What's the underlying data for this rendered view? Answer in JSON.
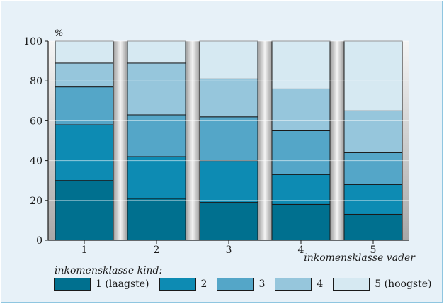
{
  "chart_data": {
    "type": "bar",
    "stacked": true,
    "categories": [
      "1",
      "2",
      "3",
      "4",
      "5"
    ],
    "xlabel": "inkomensklasse vader",
    "ylabel": "%",
    "ylim": [
      0,
      100
    ],
    "yticks": [
      0,
      20,
      40,
      60,
      80,
      100
    ],
    "legend_title": "inkomensklasse kind:",
    "legend_position": "bottom",
    "series": [
      {
        "name": "1 (laagste)",
        "color": "#00708f",
        "values": [
          30,
          21,
          19,
          18,
          13
        ]
      },
      {
        "name": "2",
        "color": "#0d8bb3",
        "values": [
          28,
          21,
          21,
          15,
          15
        ]
      },
      {
        "name": "3",
        "color": "#54a6c8",
        "values": [
          19,
          21,
          22,
          22,
          16
        ]
      },
      {
        "name": "4",
        "color": "#96c6dc",
        "values": [
          12,
          26,
          19,
          21,
          21
        ]
      },
      {
        "name": "5 (hoogste)",
        "color": "#d6e9f2",
        "values": [
          11,
          11,
          19,
          24,
          35
        ]
      }
    ]
  }
}
